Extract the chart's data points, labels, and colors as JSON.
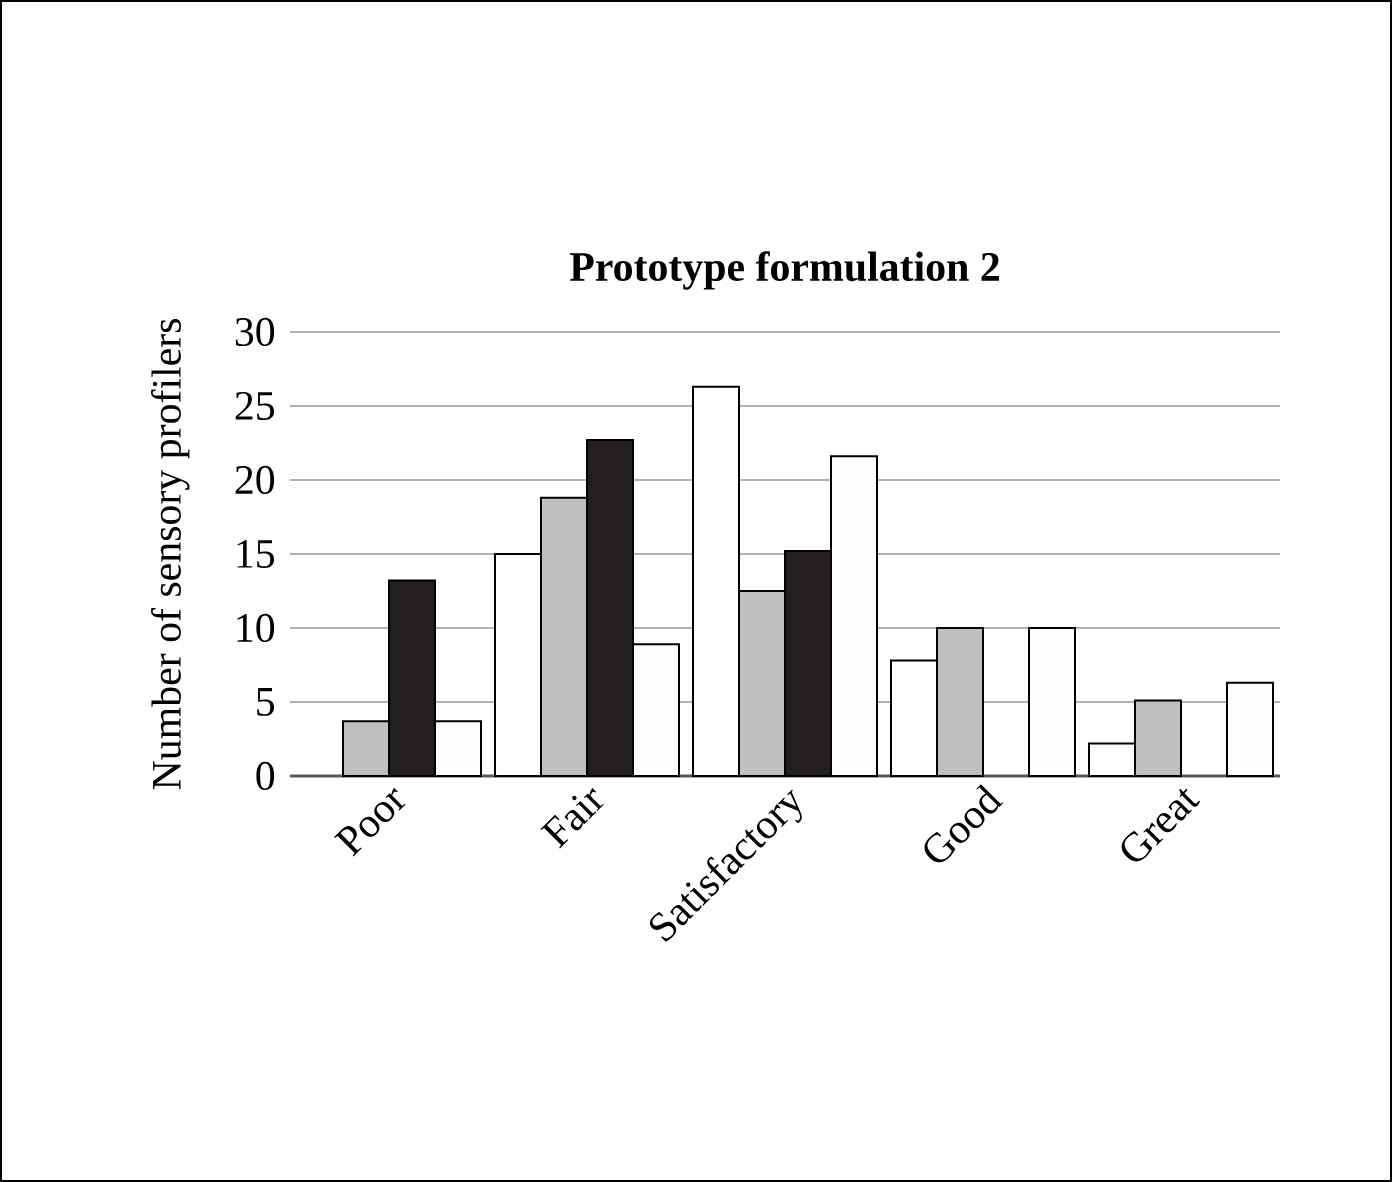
{
  "chart_data": {
    "type": "bar",
    "title": "**Prototype formulation 2**",
    "ylabel": "Number of sensory profilers",
    "categories": [
      "Poor",
      "Fair",
      "Satisfactory",
      "Good",
      "Great"
    ],
    "series": [
      {
        "color": "#ffffff",
        "values": [
          null,
          15.0,
          26.3,
          7.8,
          2.2
        ]
      },
      {
        "color": "#bfbfbf",
        "values": [
          3.7,
          18.8,
          12.5,
          10.0,
          5.1
        ]
      },
      {
        "color": "#231f20",
        "values": [
          13.2,
          22.7,
          15.2,
          null,
          null
        ]
      },
      {
        "color": "#fefefe",
        "values": [
          3.7,
          8.9,
          21.6,
          10.0,
          6.3
        ]
      }
    ],
    "ylim": [
      0,
      30
    ],
    "yticks": [
      0,
      5,
      10,
      15,
      20,
      25,
      30
    ],
    "grid": "y"
  }
}
